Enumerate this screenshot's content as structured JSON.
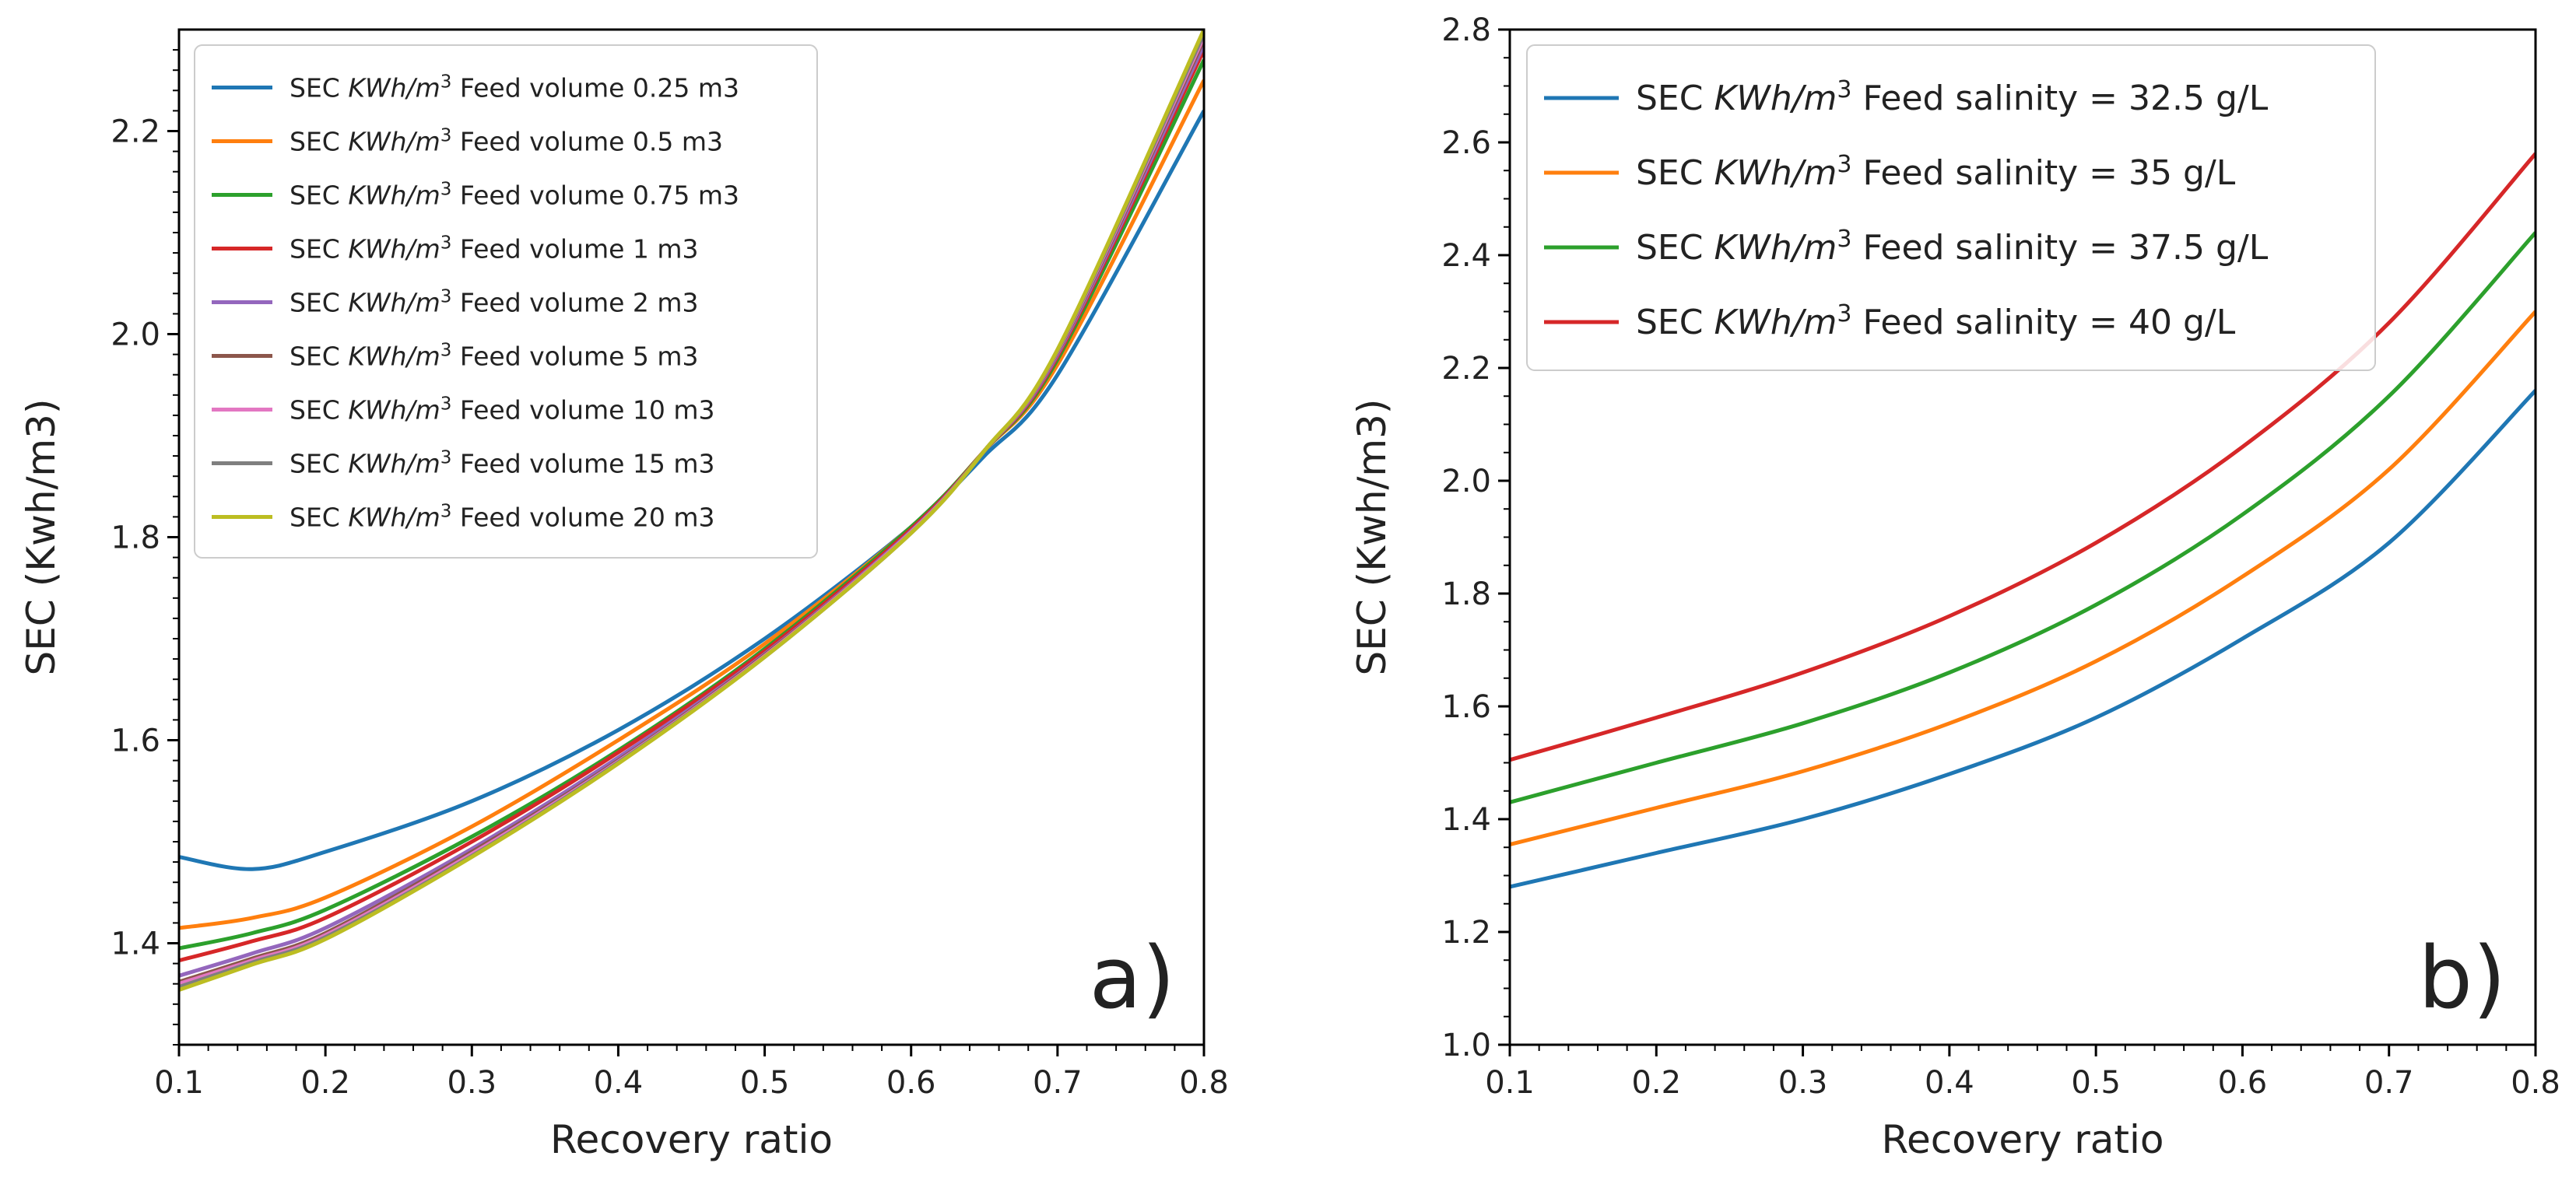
{
  "chart_data": [
    {
      "type": "line",
      "panel_label": "a)",
      "xlabel": "Recovery ratio",
      "ylabel": "SEC (Kwh/m3)",
      "xlim": [
        0.1,
        0.8
      ],
      "ylim": [
        1.3,
        2.3
      ],
      "xticks": [
        0.1,
        0.2,
        0.3,
        0.4,
        0.5,
        0.6,
        0.7,
        0.8
      ],
      "yticks": [
        1.4,
        1.6,
        1.8,
        2.0,
        2.2
      ],
      "xtick_labels": [
        "0.1",
        "0.2",
        "0.3",
        "0.4",
        "0.5",
        "0.6",
        "0.7",
        "0.8"
      ],
      "ytick_labels": [
        "1.4",
        "1.6",
        "1.8",
        "2.0",
        "2.2"
      ],
      "legend_position": "upper-left",
      "legend_prefix": "SEC",
      "legend_unit": "KWh/m",
      "legend_sup": "3",
      "x": [
        0.1,
        0.15,
        0.2,
        0.3,
        0.4,
        0.5,
        0.6,
        0.65,
        0.7,
        0.8
      ],
      "series": [
        {
          "name": "Feed volume 0.25 m3",
          "color": "#1f77b4",
          "values": [
            1.485,
            1.473,
            1.49,
            1.54,
            1.61,
            1.7,
            1.81,
            1.88,
            1.96,
            2.22
          ]
        },
        {
          "name": "Feed volume 0.5 m3",
          "color": "#ff7f0e",
          "values": [
            1.415,
            1.425,
            1.445,
            1.515,
            1.6,
            1.695,
            1.81,
            1.885,
            1.97,
            2.25
          ]
        },
        {
          "name": "Feed volume 0.75 m3",
          "color": "#2ca02c",
          "values": [
            1.395,
            1.41,
            1.433,
            1.505,
            1.59,
            1.69,
            1.81,
            1.885,
            1.975,
            2.27
          ]
        },
        {
          "name": "Feed volume 1 m3",
          "color": "#d62728",
          "values": [
            1.383,
            1.402,
            1.425,
            1.5,
            1.588,
            1.688,
            1.808,
            1.885,
            1.978,
            2.28
          ]
        },
        {
          "name": "Feed volume 2 m3",
          "color": "#9467bd",
          "values": [
            1.368,
            1.39,
            1.415,
            1.493,
            1.583,
            1.685,
            1.806,
            1.885,
            1.98,
            2.285
          ]
        },
        {
          "name": "Feed volume 5 m3",
          "color": "#8c564b",
          "values": [
            1.362,
            1.385,
            1.41,
            1.49,
            1.58,
            1.684,
            1.805,
            1.885,
            1.982,
            2.29
          ]
        },
        {
          "name": "Feed volume 10 m3",
          "color": "#e377c2",
          "values": [
            1.36,
            1.383,
            1.408,
            1.488,
            1.579,
            1.683,
            1.805,
            1.885,
            1.983,
            2.293
          ]
        },
        {
          "name": "Feed volume 15 m3",
          "color": "#7f7f7f",
          "values": [
            1.357,
            1.381,
            1.406,
            1.486,
            1.578,
            1.682,
            1.804,
            1.885,
            1.984,
            2.296
          ]
        },
        {
          "name": "Feed volume 20 m3",
          "color": "#bcbd22",
          "values": [
            1.354,
            1.379,
            1.404,
            1.485,
            1.577,
            1.682,
            1.804,
            1.885,
            1.985,
            2.3
          ]
        }
      ]
    },
    {
      "type": "line",
      "panel_label": "b)",
      "xlabel": "Recovery ratio",
      "ylabel": "SEC (Kwh/m3)",
      "xlim": [
        0.1,
        0.8
      ],
      "ylim": [
        1.0,
        2.8
      ],
      "xticks": [
        0.1,
        0.2,
        0.3,
        0.4,
        0.5,
        0.6,
        0.7,
        0.8
      ],
      "yticks": [
        1.0,
        1.2,
        1.4,
        1.6,
        1.8,
        2.0,
        2.2,
        2.4,
        2.6,
        2.8
      ],
      "xtick_labels": [
        "0.1",
        "0.2",
        "0.3",
        "0.4",
        "0.5",
        "0.6",
        "0.7",
        "0.8"
      ],
      "ytick_labels": [
        "1.0",
        "1.2",
        "1.4",
        "1.6",
        "1.8",
        "2.0",
        "2.2",
        "2.4",
        "2.6",
        "2.8"
      ],
      "legend_position": "upper-left",
      "legend_prefix": "SEC",
      "legend_unit": "KWh/m",
      "legend_sup": "3",
      "x": [
        0.1,
        0.2,
        0.3,
        0.4,
        0.5,
        0.6,
        0.7,
        0.8
      ],
      "series": [
        {
          "name": "Feed salinity = 32.5 g/L",
          "color": "#1f77b4",
          "values": [
            1.28,
            1.34,
            1.4,
            1.48,
            1.58,
            1.72,
            1.89,
            2.16
          ]
        },
        {
          "name": "Feed salinity = 35 g/L",
          "color": "#ff7f0e",
          "values": [
            1.355,
            1.42,
            1.485,
            1.57,
            1.68,
            1.83,
            2.02,
            2.3
          ]
        },
        {
          "name": "Feed salinity = 37.5 g/L",
          "color": "#2ca02c",
          "values": [
            1.43,
            1.5,
            1.57,
            1.66,
            1.78,
            1.94,
            2.15,
            2.44
          ]
        },
        {
          "name": "Feed salinity = 40 g/L",
          "color": "#d62728",
          "values": [
            1.505,
            1.58,
            1.66,
            1.76,
            1.89,
            2.06,
            2.28,
            2.58
          ]
        }
      ]
    }
  ]
}
